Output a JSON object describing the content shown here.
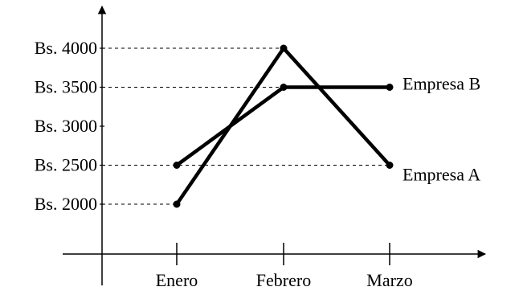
{
  "chart_data": {
    "type": "line",
    "title": "",
    "xlabel": "",
    "ylabel": "",
    "categories": [
      "Enero",
      "Febrero",
      "Marzo"
    ],
    "y_ticks": [
      2000,
      2500,
      3000,
      3500,
      4000
    ],
    "y_tick_labels": [
      "Bs. 2000",
      "Bs. 2500",
      "Bs. 3000",
      "Bs. 3500",
      "Bs. 4000"
    ],
    "ylim": [
      1500,
      4500
    ],
    "grid": false,
    "guides": "dashed lines from y-axis to highlighted points",
    "series": [
      {
        "name": "Empresa A",
        "values": [
          2000,
          4000,
          2500
        ],
        "color": "#000000"
      },
      {
        "name": "Empresa B",
        "values": [
          2500,
          3500,
          3500
        ],
        "color": "#000000"
      }
    ]
  }
}
